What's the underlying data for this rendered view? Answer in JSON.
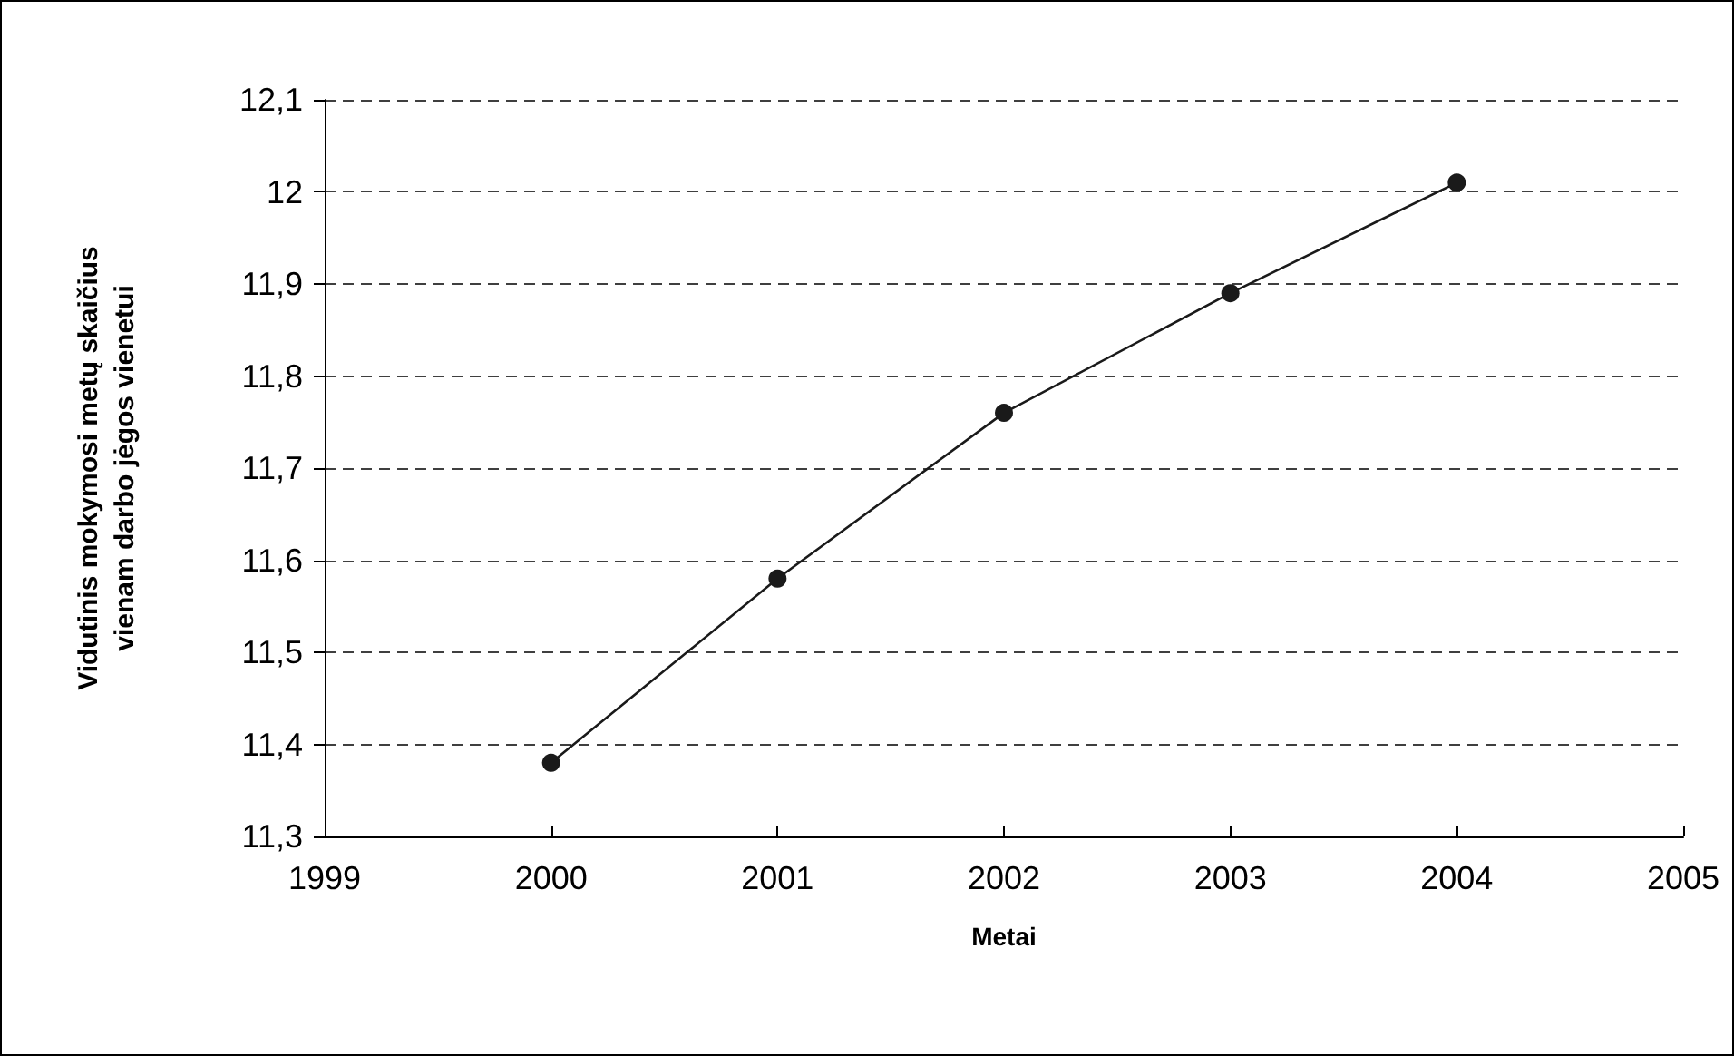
{
  "chart_data": {
    "type": "line",
    "xlabel": "Metai",
    "ylabel": "Vidutinis mokymosi metų skaičius\nvienam darbo jėgos vienetui",
    "x": [
      2000,
      2001,
      2002,
      2003,
      2004
    ],
    "series": [
      {
        "color": "#1a1a1a",
        "values": [
          11.38,
          11.58,
          11.76,
          11.89,
          12.01
        ]
      }
    ],
    "xlim": [
      1999,
      2005
    ],
    "xticks": [
      1999,
      2000,
      2001,
      2002,
      2003,
      2004,
      2005
    ],
    "ylim": [
      11.3,
      12.1
    ],
    "yticks": [
      {
        "value": 11.3,
        "label": "11,3"
      },
      {
        "value": 11.4,
        "label": "11,4"
      },
      {
        "value": 11.5,
        "label": "11,5"
      },
      {
        "value": 11.6,
        "label": "11,6"
      },
      {
        "value": 11.7,
        "label": "11,7"
      },
      {
        "value": 11.8,
        "label": "11,8"
      },
      {
        "value": 11.9,
        "label": "11,9"
      },
      {
        "value": 12,
        "label": "12"
      },
      {
        "value": 12.1,
        "label": "12,1"
      }
    ],
    "grid": "y",
    "marker": "circle",
    "line_style": "solid"
  }
}
